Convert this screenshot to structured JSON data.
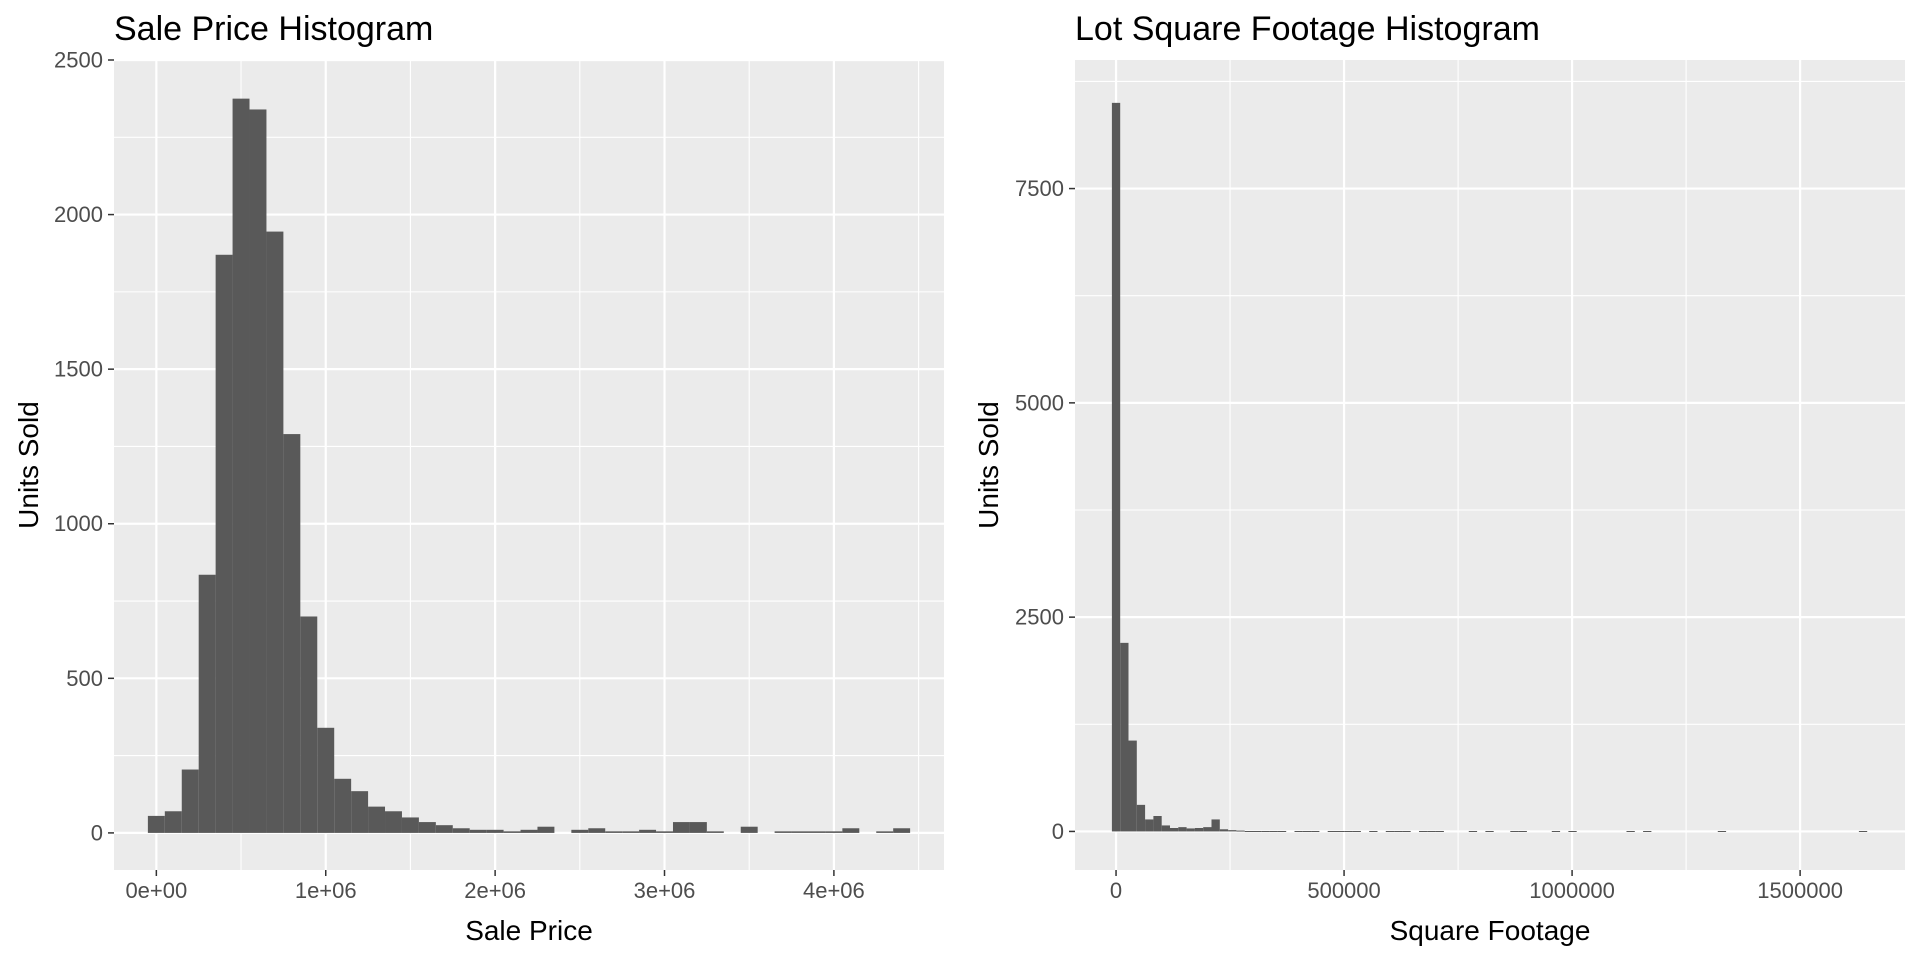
{
  "chart_data": [
    {
      "type": "bar",
      "title": "Sale Price Histogram",
      "xlabel": "Sale Price",
      "ylabel": "Units Sold",
      "xlim": [
        -250000,
        4650000
      ],
      "ylim": [
        -120,
        2500
      ],
      "xticks": [
        0,
        1000000,
        2000000,
        3000000,
        4000000
      ],
      "xtick_labels": [
        "0e+00",
        "1e+06",
        "2e+06",
        "3e+06",
        "4e+06"
      ],
      "yticks": [
        0,
        500,
        1000,
        1500,
        2000,
        2500
      ],
      "ytick_labels": [
        "0",
        "500",
        "1000",
        "1500",
        "2000",
        "2500"
      ],
      "bin_width": 100000,
      "bin_centers": [
        0,
        100000,
        200000,
        300000,
        400000,
        500000,
        600000,
        700000,
        800000,
        900000,
        1000000,
        1100000,
        1200000,
        1300000,
        1400000,
        1500000,
        1600000,
        1700000,
        1800000,
        1900000,
        2000000,
        2100000,
        2200000,
        2300000,
        2400000,
        2500000,
        2600000,
        2700000,
        2800000,
        2900000,
        3000000,
        3100000,
        3200000,
        3300000,
        3400000,
        3500000,
        3600000,
        3700000,
        3800000,
        3900000,
        4000000,
        4100000,
        4200000,
        4300000,
        4400000
      ],
      "values": [
        55,
        70,
        205,
        835,
        1870,
        2375,
        2340,
        1945,
        1290,
        700,
        340,
        175,
        135,
        85,
        70,
        50,
        35,
        25,
        15,
        10,
        10,
        5,
        10,
        20,
        0,
        10,
        15,
        5,
        5,
        10,
        5,
        35,
        35,
        5,
        0,
        20,
        0,
        5,
        5,
        5,
        5,
        15,
        0,
        5,
        15
      ],
      "grid": true
    },
    {
      "type": "bar",
      "title": "Lot Square Footage Histogram",
      "xlabel": "Square Footage",
      "ylabel": "Units Sold",
      "xlim": [
        -90000,
        1730000
      ],
      "ylim": [
        -450,
        9000
      ],
      "xticks": [
        0,
        500000,
        1000000,
        1500000
      ],
      "xtick_labels": [
        "0",
        "500000",
        "1000000",
        "1500000"
      ],
      "yticks": [
        0,
        2500,
        5000,
        7500
      ],
      "ytick_labels": [
        "0",
        "2500",
        "5000",
        "7500"
      ],
      "bin_width": 18200,
      "bin_centers": [
        0,
        18200,
        36400,
        54600,
        72800,
        91000,
        109200,
        127400,
        145600,
        163800,
        182000,
        200200,
        218400,
        236600,
        254800,
        273000,
        291200,
        309400,
        327600,
        345800,
        364000,
        400400,
        418600,
        436800,
        473200,
        491400,
        509600,
        527800,
        564200,
        600600,
        618800,
        637000,
        673400,
        691600,
        709800,
        782600,
        819000,
        873600,
        891800,
        964600,
        1001000,
        1128400,
        1164800,
        1328600,
        1638000
      ],
      "values": [
        8500,
        2200,
        1060,
        310,
        140,
        180,
        70,
        40,
        50,
        35,
        40,
        50,
        140,
        25,
        15,
        10,
        5,
        5,
        5,
        5,
        5,
        5,
        5,
        5,
        5,
        5,
        5,
        5,
        5,
        5,
        5,
        5,
        5,
        5,
        5,
        5,
        5,
        5,
        5,
        5,
        5,
        5,
        5,
        5,
        5
      ],
      "grid": true
    }
  ],
  "colors": {
    "panel_background": "#ebebeb",
    "grid_major": "#ffffff",
    "bar_fill": "#595959",
    "tick_text": "#4d4d4d",
    "tick_mark": "#333333"
  }
}
